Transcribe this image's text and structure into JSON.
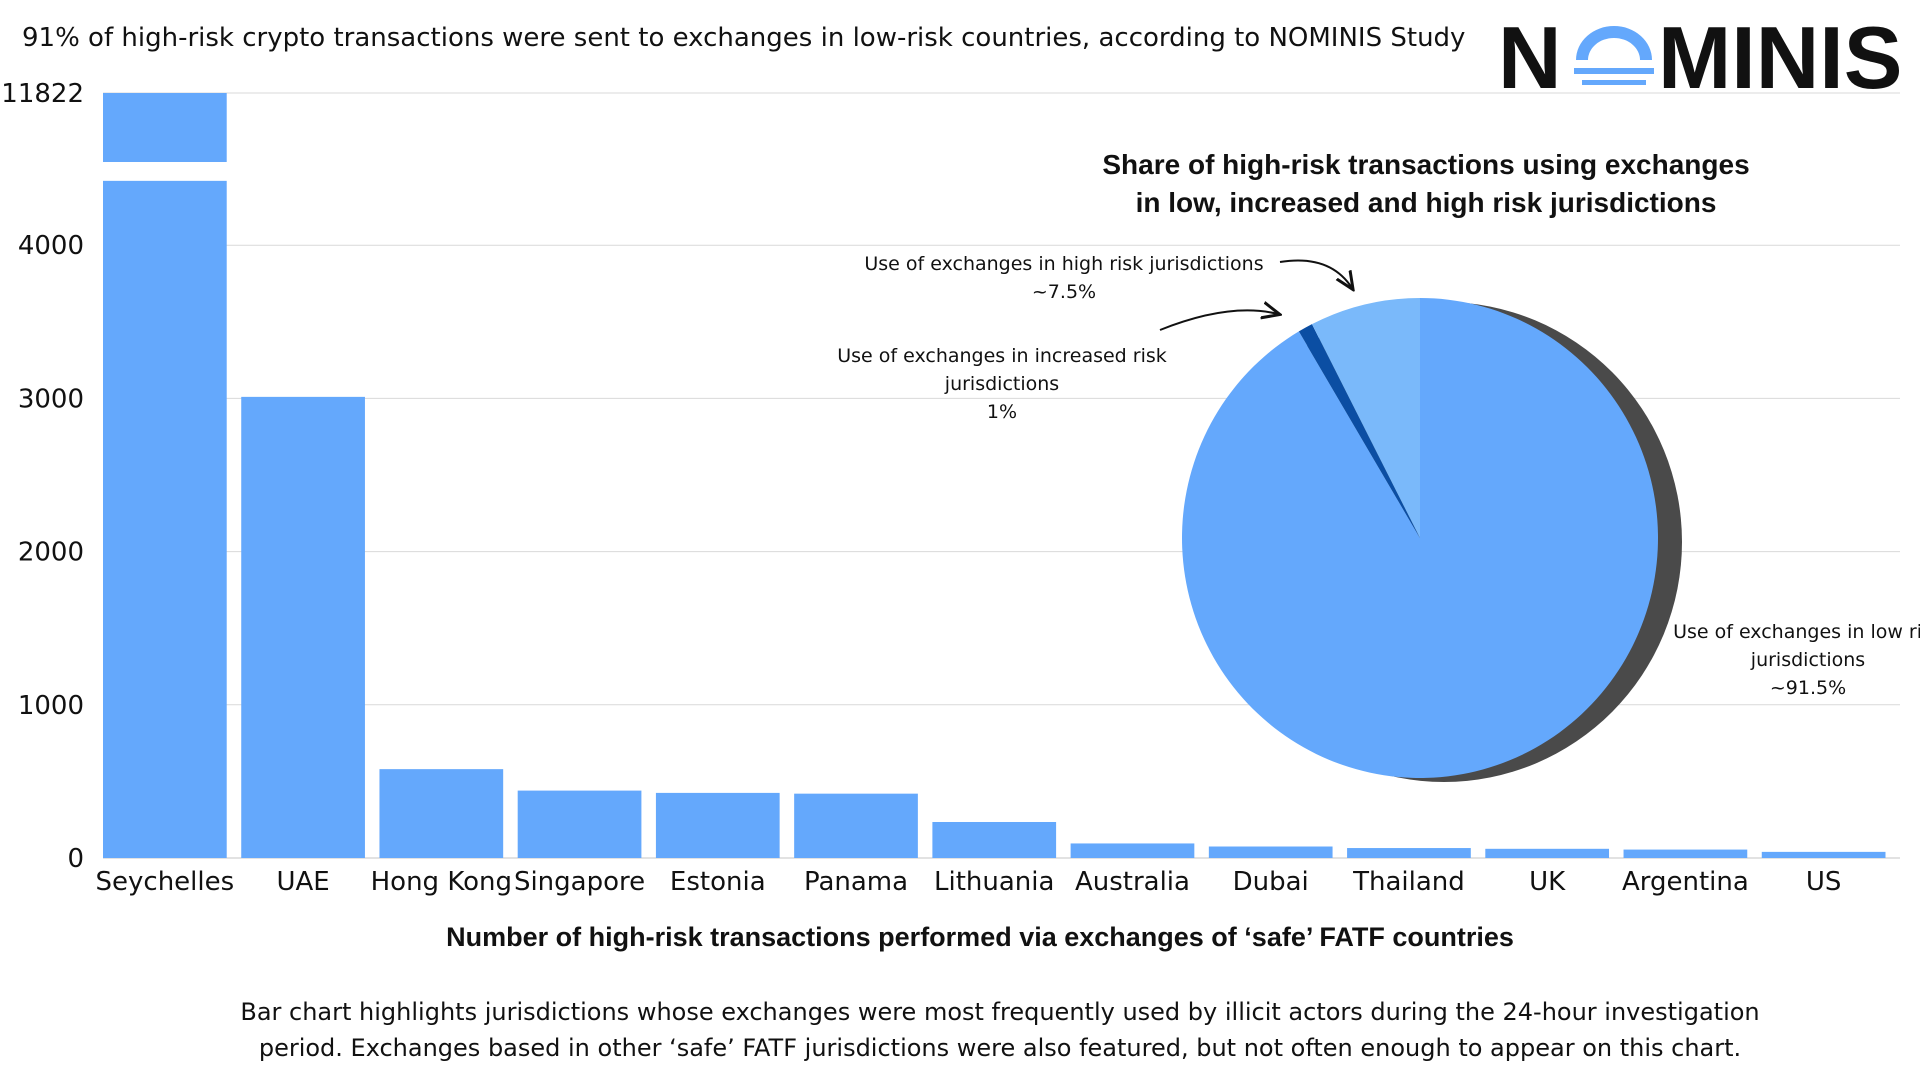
{
  "headline": "91% of high-risk crypto transactions were sent to exchanges in low-risk countries, according to NOMINIS Study",
  "logo": {
    "text_left": "N",
    "text_right": "MINIS",
    "full_name": "NOMINIS"
  },
  "caption": [
    "Bar chart highlights jurisdictions whose exchanges were most frequently used by illicit actors during the 24-hour investigation",
    "period. Exchanges based in other ‘safe’ FATF jurisdictions were also featured, but not often enough to appear on this chart."
  ],
  "colors": {
    "bar": "#64a8fc",
    "pie_low": "#64a8fc",
    "pie_high": "#7ab9fa",
    "pie_increased": "#0b4ea3",
    "pie_shadow": "#4a4a4a",
    "grid": "#d9d9d9"
  },
  "chart_data": [
    {
      "type": "bar",
      "title": "",
      "xlabel": "Number of high-risk transactions performed via exchanges of ‘safe’ FATF countries",
      "ylabel": "",
      "categories": [
        "Seychelles",
        "UAE",
        "Hong Kong",
        "Singapore",
        "Estonia",
        "Panama",
        "Lithuania",
        "Australia",
        "Dubai",
        "Thailand",
        "UK",
        "Argentina",
        "US"
      ],
      "values": [
        11822,
        3010,
        580,
        440,
        425,
        420,
        235,
        95,
        75,
        65,
        60,
        55,
        40
      ],
      "yticks": [
        "0",
        "1000",
        "2000",
        "3000",
        "4000",
        "11822"
      ],
      "ylim": [
        0,
        11822
      ],
      "axis_break": {
        "from": 4420,
        "to": 11822
      },
      "grid": true
    },
    {
      "type": "pie",
      "title": [
        "Share of high-risk transactions using exchanges",
        "in low, increased and high risk jurisdictions"
      ],
      "slices": [
        {
          "name": "Use of exchanges in low risk jurisdictions",
          "value": 91.5,
          "label_lines": [
            "Use of exchanges in low risk",
            "jurisdictions"
          ],
          "value_label": "~91.5%"
        },
        {
          "name": "Use of exchanges in increased risk jurisdictions",
          "value": 1,
          "label_lines": [
            "Use of exchanges in increased risk",
            "jurisdictions"
          ],
          "value_label": "1%"
        },
        {
          "name": "Use of exchanges in high risk jurisdictions",
          "value": 7.5,
          "label_lines": [
            "Use of exchanges in high risk jurisdictions"
          ],
          "value_label": "~7.5%"
        }
      ]
    }
  ]
}
